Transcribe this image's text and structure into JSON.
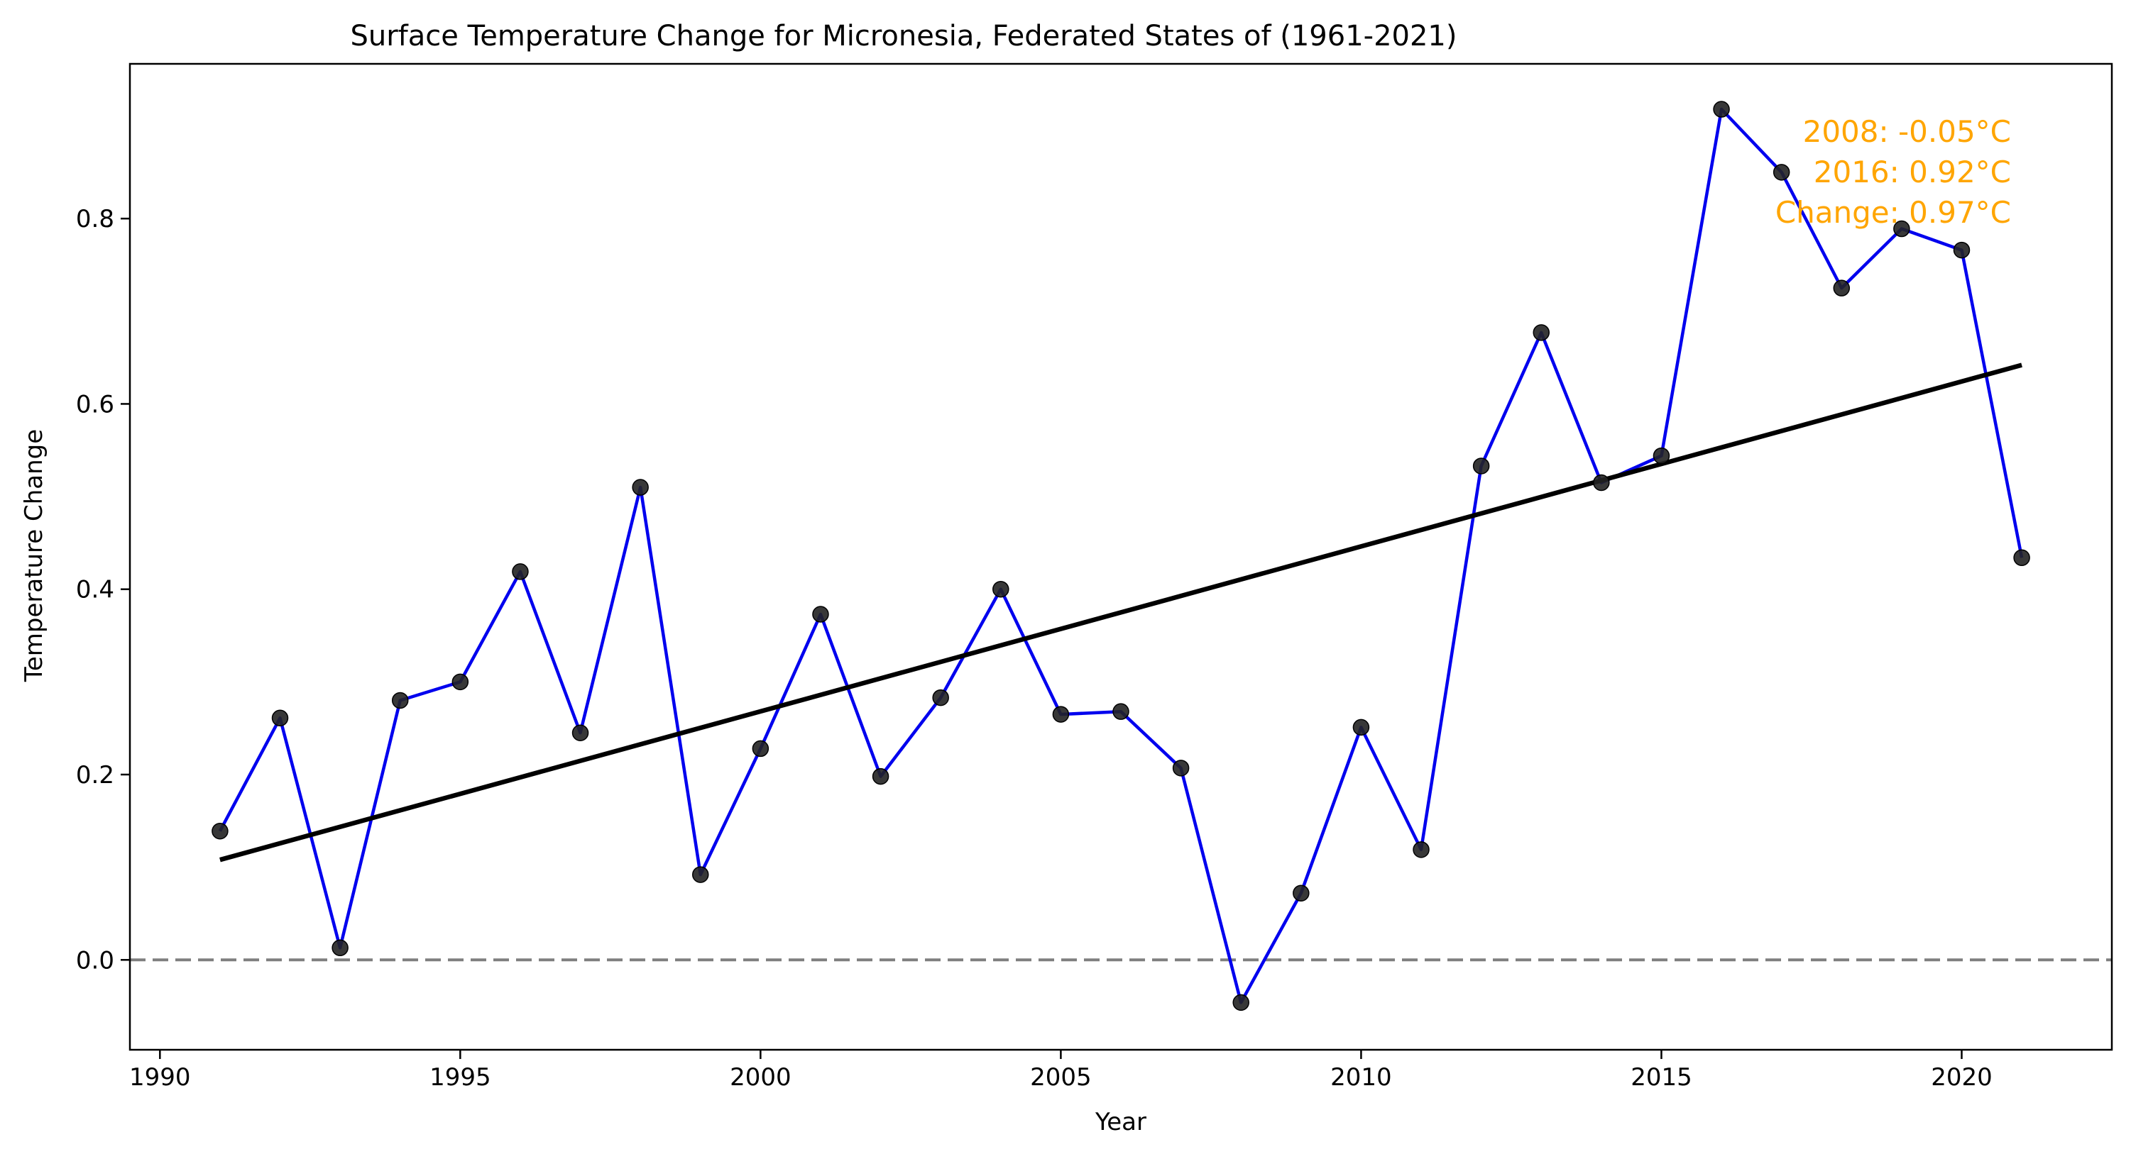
{
  "chart_data": {
    "type": "line",
    "title": "Surface Temperature Change for Micronesia, Federated States of (1961-2021)",
    "xlabel": "Year",
    "ylabel": "Temperature Change",
    "xlim": [
      1989.5,
      2022.5
    ],
    "ylim": [
      -0.097,
      0.967
    ],
    "x_ticks": [
      1990,
      1995,
      2000,
      2005,
      2010,
      2015,
      2020
    ],
    "y_ticks": [
      0.0,
      0.2,
      0.4,
      0.6,
      0.8
    ],
    "grid": false,
    "series": [
      {
        "x": [
          1991,
          1992,
          1993,
          1994,
          1995,
          1996,
          1997,
          1998,
          1999,
          2000,
          2001,
          2002,
          2003,
          2004,
          2005,
          2006,
          2007,
          2008,
          2009,
          2010,
          2011,
          2012,
          2013,
          2014,
          2015,
          2016,
          2017,
          2018,
          2019,
          2020,
          2021
        ],
        "values": [
          0.139,
          0.261,
          0.013,
          0.28,
          0.3,
          0.419,
          0.245,
          0.51,
          0.092,
          0.228,
          0.373,
          0.198,
          0.283,
          0.4,
          0.265,
          0.268,
          0.207,
          -0.046,
          0.072,
          0.251,
          0.119,
          0.533,
          0.677,
          0.515,
          0.544,
          0.918,
          0.85,
          0.725,
          0.789,
          0.766,
          0.434
        ],
        "line_color": "#0000ee",
        "marker_color": "#222222"
      }
    ],
    "trendline": {
      "x": [
        1991,
        2021
      ],
      "y": [
        0.108,
        0.642
      ],
      "color": "#000000"
    },
    "reference_line": {
      "y": 0.0,
      "style": "dashed",
      "color": "#7f7f7f"
    },
    "annotation": {
      "lines": [
        "2008: -0.05°C",
        "2016: 0.92°C",
        "Change: 0.97°C"
      ],
      "color": "#ffa500",
      "placement": "top-right"
    }
  }
}
